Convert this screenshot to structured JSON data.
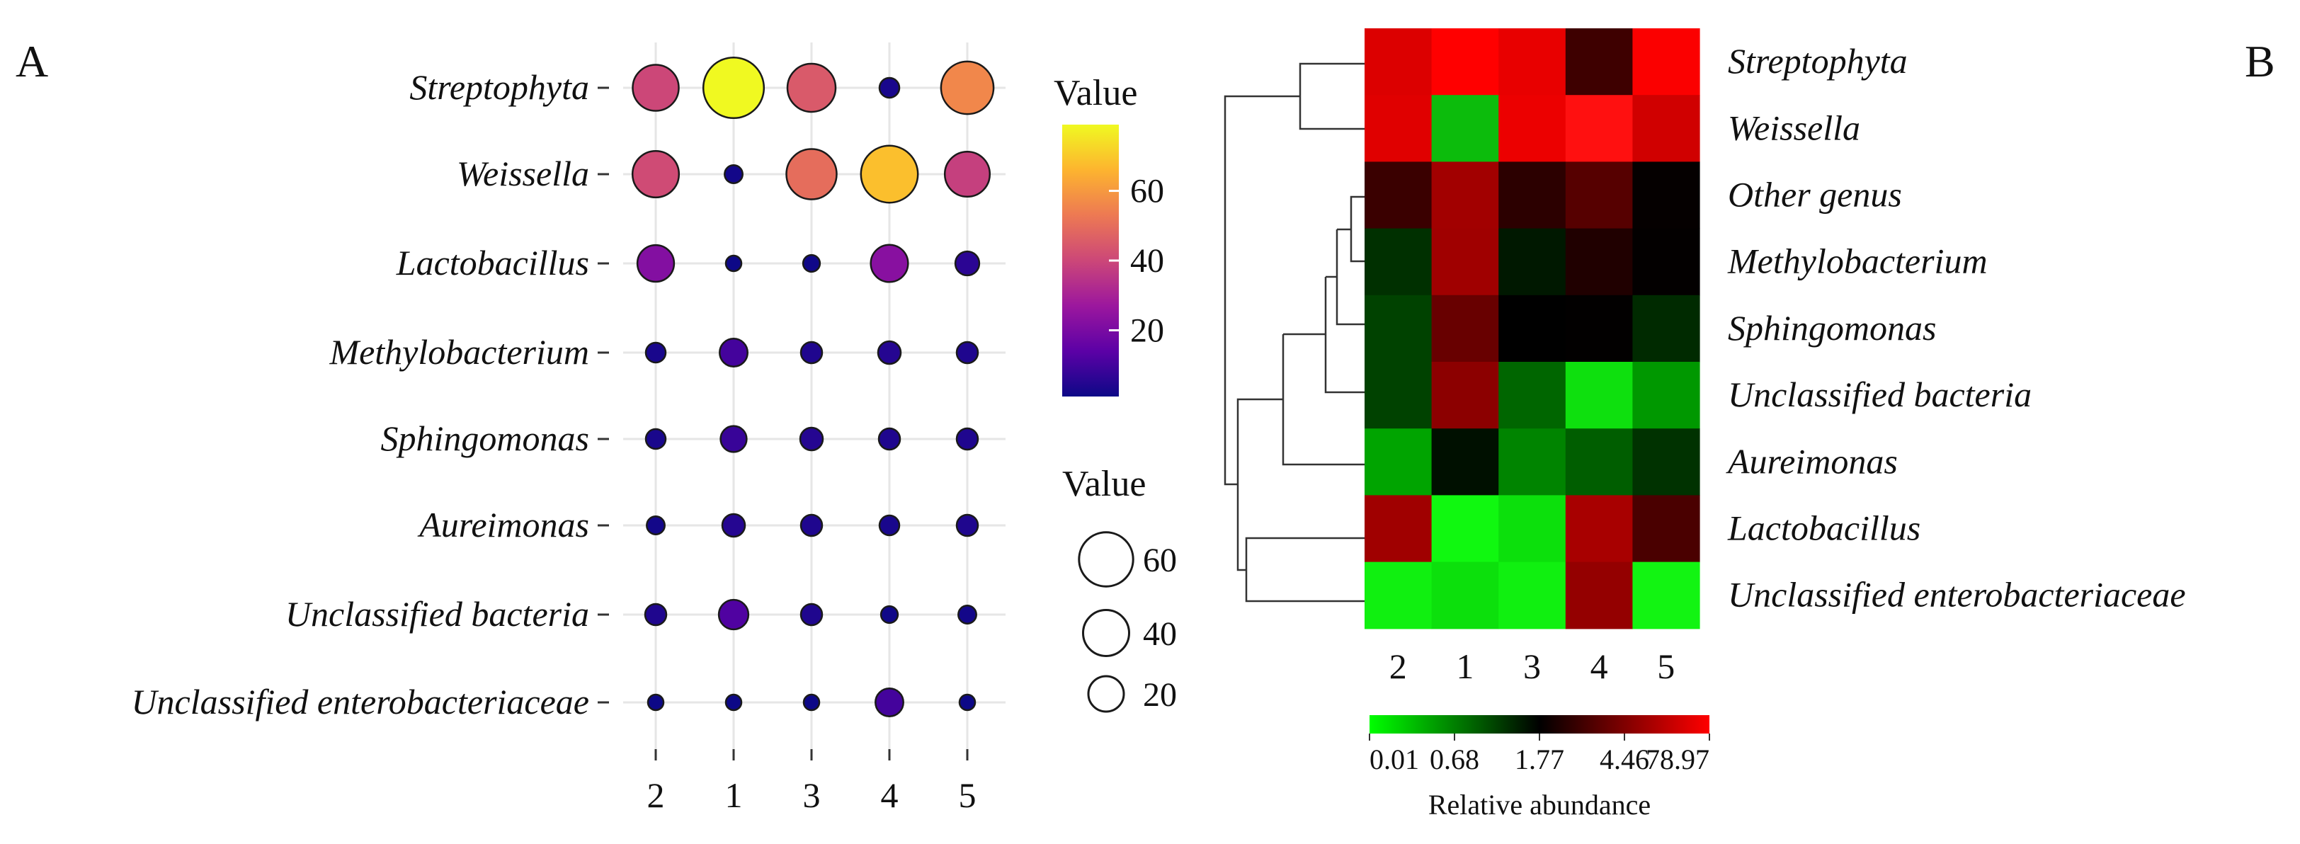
{
  "panel_a_label": "A",
  "panel_b_label": "B",
  "chart_data": [
    {
      "type": "bubble",
      "panel": "A",
      "x_categories": [
        "2",
        "1",
        "3",
        "4",
        "5"
      ],
      "y_categories": [
        "Streptophyta",
        "Weissella",
        "Lactobacillus",
        "Methylobacterium",
        "Sphingomonas",
        "Aureimonas",
        "Unclassified bacteria",
        "Unclassified enterobacteriaceae"
      ],
      "values": [
        [
          40,
          79,
          45,
          3,
          56
        ],
        [
          41,
          2,
          50,
          68,
          38
        ],
        [
          22,
          1,
          1.5,
          23,
          6
        ],
        [
          3,
          10,
          4,
          5,
          4
        ],
        [
          3,
          8,
          5,
          4,
          4
        ],
        [
          2,
          5,
          4,
          3,
          4
        ],
        [
          4,
          12,
          4,
          1.5,
          2
        ],
        [
          1,
          1,
          1,
          10,
          1
        ]
      ],
      "color_legend": {
        "title": "Value",
        "ticks": [
          20,
          40,
          60
        ],
        "range": [
          1,
          79
        ],
        "colormap": [
          "#0d0887",
          "#5c01a6",
          "#9c179e",
          "#cc4778",
          "#ed7953",
          "#fdb42f",
          "#f0f921"
        ]
      },
      "size_legend": {
        "title": "Value",
        "values": [
          60,
          40,
          20
        ]
      }
    },
    {
      "type": "heatmap",
      "panel": "B",
      "columns": [
        "2",
        "1",
        "3",
        "4",
        "5"
      ],
      "rows": [
        "Streptophyta",
        "Weissella",
        "Other genus",
        "Methylobacterium",
        "Sphingomonas",
        "Unclassified bacteria",
        "Aureimonas",
        "Lactobacillus",
        "Unclassified enterobacteriaceae"
      ],
      "colors": [
        [
          "#dc0000",
          "#ff0000",
          "#e80000",
          "#3e0000",
          "#fb0000"
        ],
        [
          "#e00000",
          "#0cbc0c",
          "#ec0000",
          "#ff1010",
          "#d00000"
        ],
        [
          "#3a0000",
          "#a20000",
          "#2c0000",
          "#560000",
          "#050000"
        ],
        [
          "#003000",
          "#a00000",
          "#001800",
          "#200000",
          "#030000"
        ],
        [
          "#004200",
          "#680000",
          "#000000",
          "#020000",
          "#002a00"
        ],
        [
          "#004200",
          "#8c0000",
          "#006600",
          "#0ee00e",
          "#009800"
        ],
        [
          "#00a400",
          "#001000",
          "#008400",
          "#005e00",
          "#003200"
        ],
        [
          "#a00000",
          "#10f810",
          "#0ce00c",
          "#a80000",
          "#4a0000"
        ],
        [
          "#10f010",
          "#0ce00c",
          "#10f010",
          "#940000",
          "#12f412"
        ]
      ],
      "colorbar": {
        "title": "Relative abundance",
        "ticks": [
          "0.01",
          "0.68",
          "1.77",
          "4.46",
          "78.97"
        ],
        "colors": [
          "#00ff00",
          "#000000",
          "#ff0000"
        ]
      }
    }
  ]
}
